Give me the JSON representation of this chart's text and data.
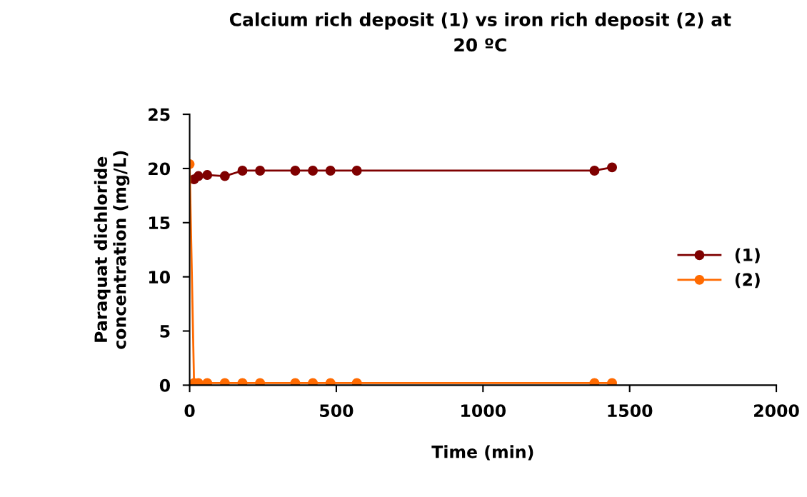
{
  "chart_data": {
    "type": "line",
    "title": "Calcium rich deposit (1) vs iron rich deposit (2) at\n20 ºC",
    "xlabel": "Time (min)",
    "ylabel": "Paraquat dichloride\nconcentration (mg/L)",
    "x": [
      0,
      15,
      30,
      60,
      120,
      180,
      240,
      360,
      420,
      480,
      570,
      1380,
      1440
    ],
    "series": [
      {
        "name": "(1)",
        "color": "#7f0000",
        "values": [
          null,
          19.0,
          19.3,
          19.4,
          19.3,
          19.8,
          19.8,
          19.8,
          19.8,
          19.8,
          19.8,
          19.8,
          20.1
        ]
      },
      {
        "name": "(2)",
        "color": "#ff6a00",
        "values": [
          20.4,
          0.2,
          0.2,
          0.2,
          0.2,
          0.2,
          0.2,
          0.2,
          0.2,
          0.2,
          0.2,
          0.2,
          0.2
        ]
      }
    ],
    "xlim": [
      0,
      2000
    ],
    "xticks": [
      0,
      500,
      1000,
      1500,
      2000
    ],
    "ylim": [
      0,
      25
    ],
    "yticks": [
      0,
      5,
      10,
      15,
      20,
      25
    ],
    "marker": "circle",
    "line_style": "solid",
    "grid": false,
    "legend": "right"
  }
}
